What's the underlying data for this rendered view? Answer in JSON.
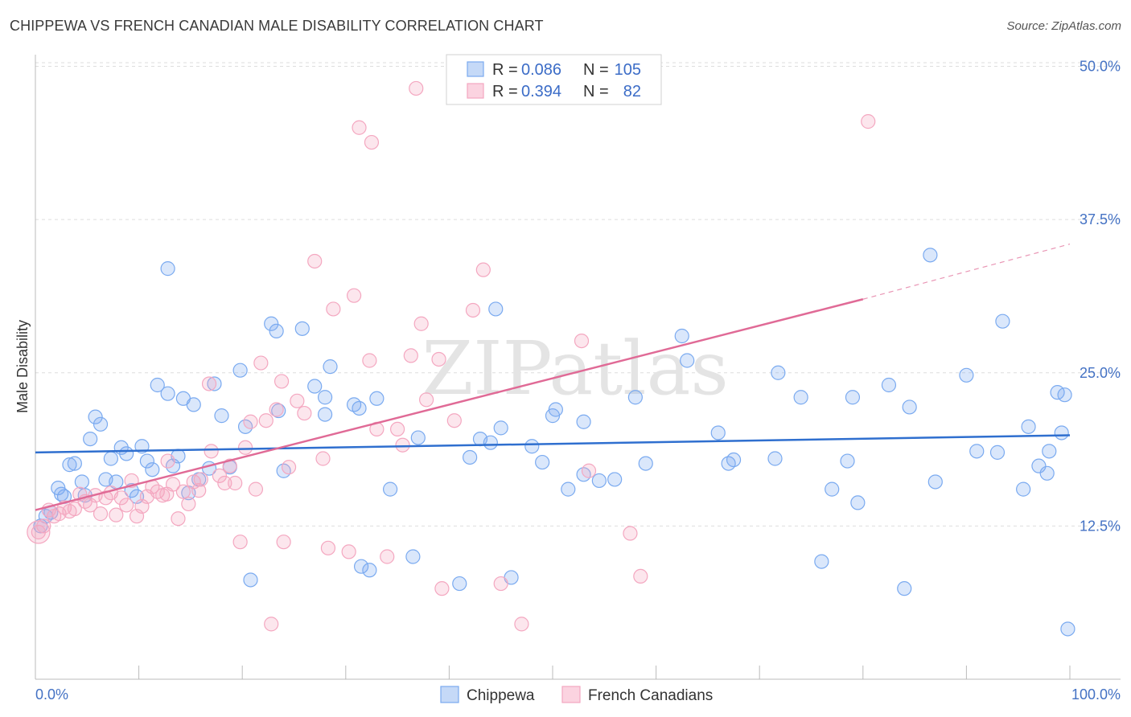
{
  "title": "CHIPPEWA VS FRENCH CANADIAN MALE DISABILITY CORRELATION CHART",
  "source": "Source: ZipAtlas.com",
  "chart_data": {
    "type": "scatter",
    "title": "CHIPPEWA VS FRENCH CANADIAN MALE DISABILITY CORRELATION CHART",
    "xlabel": "",
    "ylabel": "Male Disability",
    "xlim": [
      0,
      100
    ],
    "ylim": [
      0,
      52
    ],
    "x_tick_labels": [
      "0.0%",
      "100.0%"
    ],
    "y_ticks": [
      12.5,
      25.0,
      37.5,
      50.0
    ],
    "y_tick_labels": [
      "12.5%",
      "25.0%",
      "37.5%",
      "50.0%"
    ],
    "grid": true,
    "watermark": "ZIPatlas",
    "legend": {
      "position": "top-center",
      "rows": [
        {
          "r_label": "R =",
          "r": "0.086",
          "n_label": "N =",
          "n": "105"
        },
        {
          "r_label": "R =",
          "r": "0.394",
          "n_label": "N =",
          "n": "82"
        }
      ]
    },
    "series": [
      {
        "name": "Chippewa",
        "color": "#7aaaf0",
        "line_color": "#2f6fcf",
        "trend": {
          "x": [
            0,
            100
          ],
          "y": [
            18.5,
            19.9
          ]
        },
        "points": [
          [
            0.5,
            12.5
          ],
          [
            1.0,
            13.3
          ],
          [
            1.5,
            13.6
          ],
          [
            2.2,
            15.6
          ],
          [
            2.5,
            15.1
          ],
          [
            2.8,
            14.9
          ],
          [
            3.3,
            17.5
          ],
          [
            3.8,
            17.6
          ],
          [
            4.5,
            16.1
          ],
          [
            4.8,
            15.0
          ],
          [
            5.3,
            19.6
          ],
          [
            5.8,
            21.4
          ],
          [
            6.3,
            20.8
          ],
          [
            6.8,
            16.3
          ],
          [
            7.3,
            18.0
          ],
          [
            7.8,
            16.1
          ],
          [
            8.3,
            18.9
          ],
          [
            8.8,
            18.4
          ],
          [
            9.3,
            15.4
          ],
          [
            9.8,
            14.9
          ],
          [
            10.3,
            19.0
          ],
          [
            10.8,
            17.8
          ],
          [
            11.3,
            17.1
          ],
          [
            11.8,
            24.0
          ],
          [
            12.8,
            23.3
          ],
          [
            12.8,
            33.5
          ],
          [
            13.3,
            17.4
          ],
          [
            13.8,
            18.2
          ],
          [
            14.3,
            22.9
          ],
          [
            14.8,
            15.2
          ],
          [
            15.3,
            22.4
          ],
          [
            15.8,
            16.3
          ],
          [
            16.8,
            17.2
          ],
          [
            17.3,
            24.1
          ],
          [
            18.0,
            21.5
          ],
          [
            18.8,
            17.3
          ],
          [
            19.8,
            25.2
          ],
          [
            20.3,
            20.6
          ],
          [
            20.8,
            8.1
          ],
          [
            22.8,
            29.0
          ],
          [
            23.3,
            28.4
          ],
          [
            23.5,
            21.9
          ],
          [
            24.0,
            17.0
          ],
          [
            25.8,
            28.6
          ],
          [
            27.0,
            23.9
          ],
          [
            28.0,
            21.6
          ],
          [
            28.0,
            23.0
          ],
          [
            28.5,
            25.5
          ],
          [
            30.8,
            22.4
          ],
          [
            31.3,
            22.1
          ],
          [
            31.5,
            9.2
          ],
          [
            32.3,
            8.9
          ],
          [
            33.0,
            22.9
          ],
          [
            34.3,
            15.5
          ],
          [
            36.5,
            10.0
          ],
          [
            37.0,
            19.7
          ],
          [
            41.0,
            7.8
          ],
          [
            42.0,
            18.1
          ],
          [
            43.0,
            19.6
          ],
          [
            44.0,
            19.3
          ],
          [
            44.5,
            30.2
          ],
          [
            45.0,
            20.5
          ],
          [
            46.0,
            8.3
          ],
          [
            48.0,
            19.0
          ],
          [
            49.0,
            17.7
          ],
          [
            50.0,
            21.5
          ],
          [
            50.3,
            22.0
          ],
          [
            51.5,
            15.5
          ],
          [
            53.0,
            21.0
          ],
          [
            53.0,
            16.7
          ],
          [
            54.5,
            16.2
          ],
          [
            56.0,
            16.3
          ],
          [
            58.0,
            23.0
          ],
          [
            59.0,
            17.6
          ],
          [
            62.5,
            28.0
          ],
          [
            63.0,
            26.0
          ],
          [
            66.0,
            20.1
          ],
          [
            67.0,
            17.6
          ],
          [
            67.5,
            17.9
          ],
          [
            71.5,
            18.0
          ],
          [
            71.8,
            25.0
          ],
          [
            74.0,
            23.0
          ],
          [
            76.0,
            9.6
          ],
          [
            77.0,
            15.5
          ],
          [
            78.5,
            17.8
          ],
          [
            79.0,
            23.0
          ],
          [
            79.5,
            14.4
          ],
          [
            82.5,
            24.0
          ],
          [
            84.0,
            7.4
          ],
          [
            84.5,
            22.2
          ],
          [
            86.5,
            34.6
          ],
          [
            87.0,
            16.1
          ],
          [
            90.0,
            24.8
          ],
          [
            91.0,
            18.6
          ],
          [
            93.0,
            18.5
          ],
          [
            93.5,
            29.2
          ],
          [
            95.5,
            15.5
          ],
          [
            96.0,
            20.6
          ],
          [
            97.0,
            17.4
          ],
          [
            97.8,
            16.8
          ],
          [
            98.0,
            18.6
          ],
          [
            98.8,
            23.4
          ],
          [
            99.5,
            23.2
          ],
          [
            99.8,
            4.1
          ],
          [
            99.2,
            20.1
          ]
        ]
      },
      {
        "name": "French Canadians",
        "color": "#f4a7c0",
        "line_color": "#e06a96",
        "trend": {
          "x": [
            0,
            80
          ],
          "y": [
            13.8,
            31.0
          ]
        },
        "trend_dashed": {
          "x": [
            80,
            100
          ],
          "y": [
            31.0,
            35.5
          ]
        },
        "points": [
          [
            0.3,
            12.0
          ],
          [
            0.8,
            12.5
          ],
          [
            1.3,
            13.8
          ],
          [
            1.8,
            13.3
          ],
          [
            2.3,
            13.5
          ],
          [
            2.8,
            14.0
          ],
          [
            3.3,
            13.7
          ],
          [
            3.8,
            13.9
          ],
          [
            4.3,
            15.1
          ],
          [
            4.8,
            14.5
          ],
          [
            5.3,
            14.2
          ],
          [
            5.8,
            15.0
          ],
          [
            6.3,
            13.5
          ],
          [
            6.8,
            14.8
          ],
          [
            7.3,
            15.2
          ],
          [
            7.8,
            13.4
          ],
          [
            8.3,
            14.8
          ],
          [
            8.8,
            14.2
          ],
          [
            9.3,
            16.2
          ],
          [
            9.8,
            13.3
          ],
          [
            10.3,
            14.1
          ],
          [
            10.8,
            14.9
          ],
          [
            11.3,
            15.7
          ],
          [
            11.8,
            15.3
          ],
          [
            12.3,
            15.0
          ],
          [
            12.8,
            17.8
          ],
          [
            13.3,
            15.9
          ],
          [
            13.8,
            13.1
          ],
          [
            14.3,
            15.3
          ],
          [
            14.8,
            14.3
          ],
          [
            15.3,
            16.1
          ],
          [
            15.8,
            15.4
          ],
          [
            16.8,
            24.1
          ],
          [
            17.0,
            18.6
          ],
          [
            17.8,
            16.6
          ],
          [
            18.3,
            16.0
          ],
          [
            18.8,
            17.4
          ],
          [
            19.3,
            16.0
          ],
          [
            19.8,
            11.2
          ],
          [
            20.3,
            18.9
          ],
          [
            20.8,
            21.0
          ],
          [
            21.3,
            15.5
          ],
          [
            21.8,
            25.8
          ],
          [
            22.3,
            21.1
          ],
          [
            22.8,
            4.5
          ],
          [
            23.3,
            22.0
          ],
          [
            23.8,
            24.3
          ],
          [
            24.0,
            11.2
          ],
          [
            24.5,
            17.3
          ],
          [
            25.3,
            22.7
          ],
          [
            26.0,
            21.7
          ],
          [
            27.0,
            34.1
          ],
          [
            27.8,
            18.0
          ],
          [
            28.3,
            10.7
          ],
          [
            28.8,
            30.2
          ],
          [
            30.3,
            10.4
          ],
          [
            30.8,
            31.3
          ],
          [
            31.3,
            45.0
          ],
          [
            32.3,
            26.0
          ],
          [
            32.5,
            43.8
          ],
          [
            33.0,
            20.4
          ],
          [
            34.0,
            10.0
          ],
          [
            35.0,
            20.4
          ],
          [
            35.5,
            19.1
          ],
          [
            36.3,
            26.4
          ],
          [
            37.3,
            29.0
          ],
          [
            37.8,
            22.8
          ],
          [
            39.0,
            26.1
          ],
          [
            39.3,
            7.4
          ],
          [
            40.5,
            21.1
          ],
          [
            42.3,
            30.1
          ],
          [
            43.3,
            33.4
          ],
          [
            45.0,
            7.8
          ],
          [
            47.0,
            4.5
          ],
          [
            52.8,
            27.6
          ],
          [
            53.5,
            17.0
          ],
          [
            57.5,
            11.9
          ],
          [
            58.5,
            8.4
          ],
          [
            80.5,
            45.5
          ],
          [
            36.8,
            48.2
          ],
          [
            12.7,
            15.1
          ],
          [
            16.0,
            16.3
          ]
        ]
      }
    ]
  }
}
